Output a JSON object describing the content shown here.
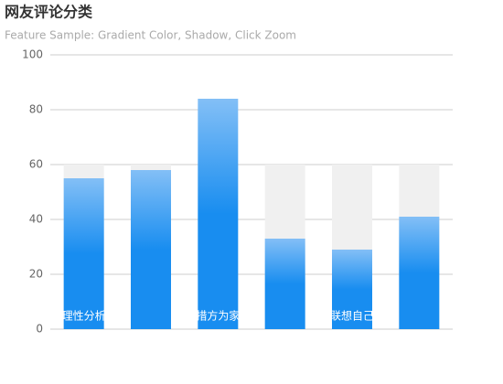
{
  "chart_data": {
    "type": "bar",
    "title": "网友评论分类",
    "subtitle": "Feature Sample: Gradient Color, Shadow, Click Zoom",
    "categories": [
      "理性分析",
      null,
      "措方为家",
      null,
      "联想自己",
      null
    ],
    "values": [
      55,
      58,
      84,
      33,
      29,
      41
    ],
    "colors": [
      "#83bff6",
      "#188df0",
      "#188df0"
    ],
    "shadow": {
      "color": "#f0f0f0",
      "values": [
        60,
        60,
        60,
        60,
        60,
        60
      ]
    },
    "ylim": [
      0,
      100
    ],
    "yticks": [
      0,
      20,
      40,
      60,
      80,
      100
    ],
    "grid": true
  }
}
